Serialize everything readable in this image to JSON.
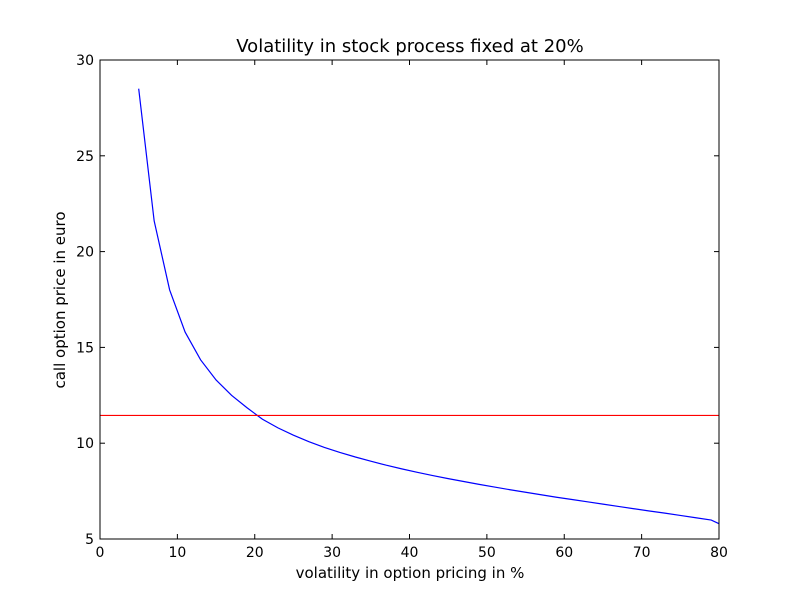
{
  "chart_data": {
    "type": "line",
    "title": "Volatility in stock process fixed at 20%",
    "xlabel": "volatility in option pricing in %",
    "ylabel": "call option price in euro",
    "xlim": [
      0,
      80
    ],
    "ylim": [
      5,
      30
    ],
    "xticks": [
      0,
      10,
      20,
      30,
      40,
      50,
      60,
      70,
      80
    ],
    "yticks": [
      5,
      10,
      15,
      20,
      25,
      30
    ],
    "grid": false,
    "series": [
      {
        "color": "#0000ff",
        "x": [
          5,
          7,
          9,
          11,
          13,
          15,
          17,
          19,
          21,
          23,
          25,
          27,
          29,
          31,
          33,
          35,
          37,
          39,
          41,
          43,
          45,
          47,
          49,
          51,
          53,
          55,
          57,
          59,
          61,
          63,
          65,
          67,
          69,
          71,
          73,
          75,
          77,
          79,
          80
        ],
        "y": [
          28.5,
          21.6,
          18.0,
          15.8,
          14.35,
          13.3,
          12.5,
          11.85,
          11.25,
          10.8,
          10.42,
          10.08,
          9.78,
          9.52,
          9.28,
          9.06,
          8.85,
          8.66,
          8.48,
          8.31,
          8.15,
          8.0,
          7.85,
          7.71,
          7.57,
          7.44,
          7.31,
          7.18,
          7.06,
          6.94,
          6.82,
          6.7,
          6.58,
          6.46,
          6.35,
          6.23,
          6.11,
          5.99,
          5.8
        ]
      },
      {
        "color": "#ff0000",
        "x": [
          0,
          80
        ],
        "y": [
          11.45,
          11.45
        ]
      }
    ]
  }
}
